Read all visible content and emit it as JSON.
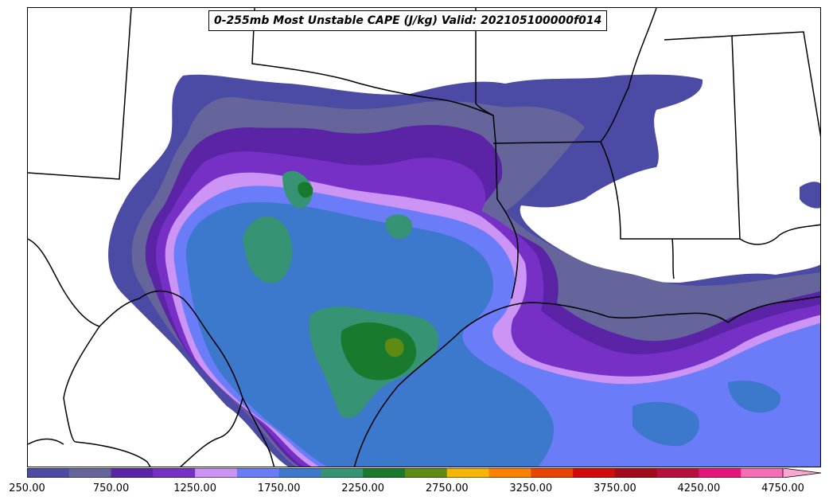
{
  "map": {
    "title": "0-255mb Most Unstable CAPE (J/kg) Valid: 202105100000f014",
    "variable": "Most Unstable CAPE",
    "units": "J/kg",
    "layer": "0-255mb",
    "valid_time": "202105100000f014"
  },
  "colorbar": {
    "levels": [
      250,
      500,
      750,
      1000,
      1250,
      1500,
      1750,
      2000,
      2250,
      2500,
      2750,
      3000,
      3250,
      3500,
      3750,
      4000,
      4250,
      4500,
      4750,
      5000
    ],
    "colors": [
      "#4b4ba5",
      "#65659c",
      "#5b23a5",
      "#7730c6",
      "#cc95f5",
      "#6a7cf8",
      "#3c78cc",
      "#369475",
      "#197a2d",
      "#5f8a14",
      "#f4b600",
      "#fa8200",
      "#e84300",
      "#d20a0a",
      "#a30a1a",
      "#b8103e",
      "#e8147d",
      "#f46db5"
    ],
    "extend_color": "#f9a6d0",
    "tick_labels": [
      "250.00",
      "750.00",
      "1250.00",
      "1750.00",
      "2250.00",
      "2750.00",
      "3250.00",
      "3750.00",
      "4250.00",
      "4750.00"
    ]
  },
  "field_colors": {
    "background": "#ffffff",
    "boundary": "#000000"
  }
}
